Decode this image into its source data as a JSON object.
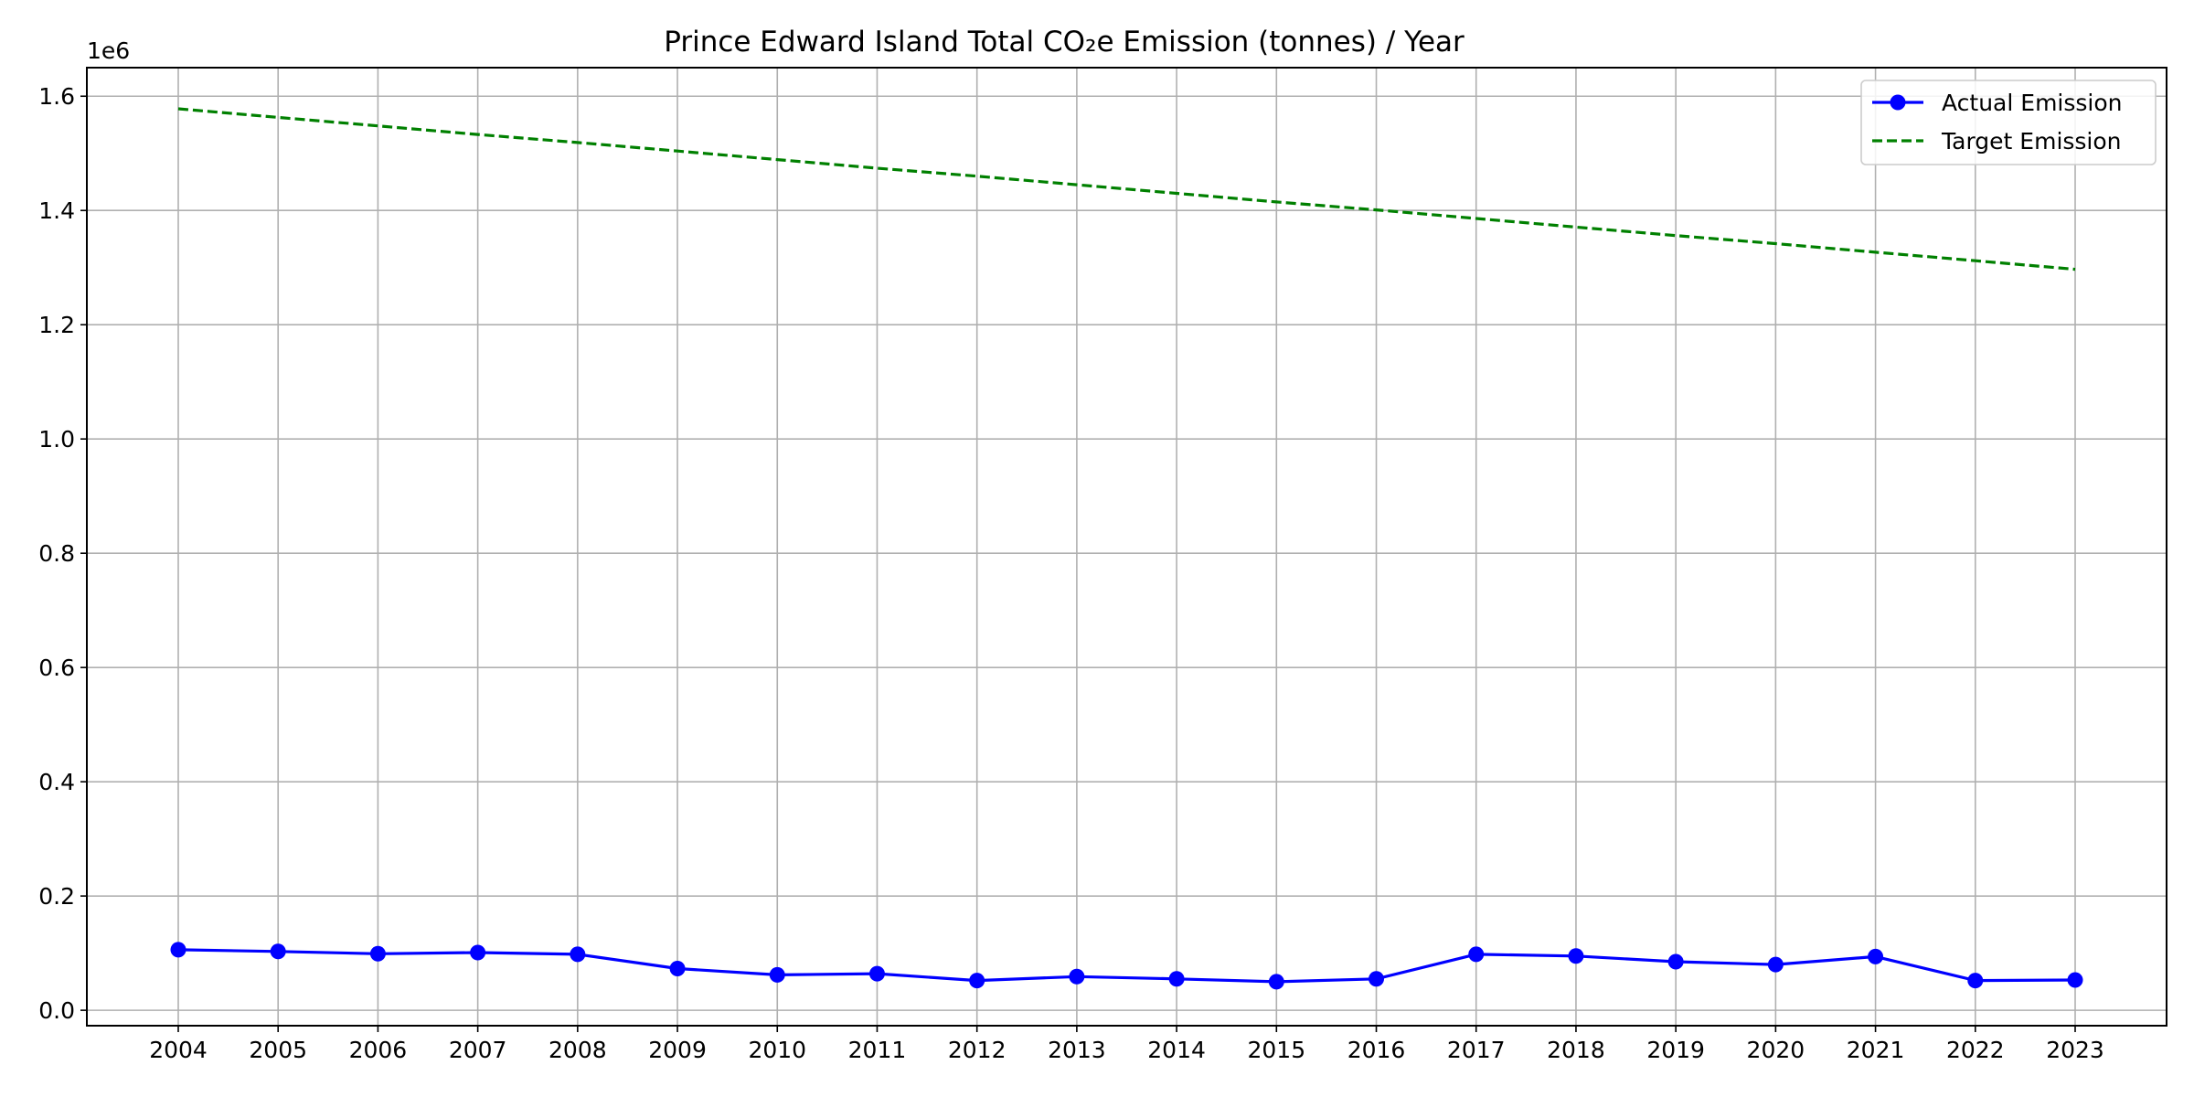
{
  "chart_data": {
    "type": "line",
    "title": "Prince Edward Island Total CO₂e Emission (tonnes) / Year",
    "xlabel": "",
    "ylabel": "",
    "y_offset_label": "1e6",
    "x": [
      "2004",
      "2005",
      "2006",
      "2007",
      "2008",
      "2009",
      "2010",
      "2011",
      "2012",
      "2013",
      "2014",
      "2015",
      "2016",
      "2017",
      "2018",
      "2019",
      "2020",
      "2021",
      "2022",
      "2023"
    ],
    "ylim": [
      -27000,
      1650000
    ],
    "yticks": [
      0,
      200000,
      400000,
      600000,
      800000,
      1000000,
      1200000,
      1400000,
      1600000
    ],
    "ytick_labels": [
      "0.0",
      "0.2",
      "0.4",
      "0.6",
      "0.8",
      "1.0",
      "1.2",
      "1.4",
      "1.6"
    ],
    "grid": true,
    "legend_position": "top-right",
    "series": [
      {
        "name": "Actual Emission",
        "color": "#0000ff",
        "style": "solid-with-circle-markers",
        "values": [
          106000,
          103000,
          99000,
          101000,
          98000,
          73000,
          62000,
          64000,
          52000,
          59000,
          55000,
          50000,
          55000,
          98000,
          95000,
          85000,
          80000,
          94000,
          52000,
          53000
        ]
      },
      {
        "name": "Target Emission",
        "color": "#008000",
        "style": "dashed",
        "values": [
          1578000,
          1563000,
          1548000,
          1533000,
          1519000,
          1504000,
          1489000,
          1474000,
          1460000,
          1445000,
          1430000,
          1415000,
          1401000,
          1386000,
          1371000,
          1356000,
          1342000,
          1327000,
          1312000,
          1297000
        ]
      }
    ]
  }
}
